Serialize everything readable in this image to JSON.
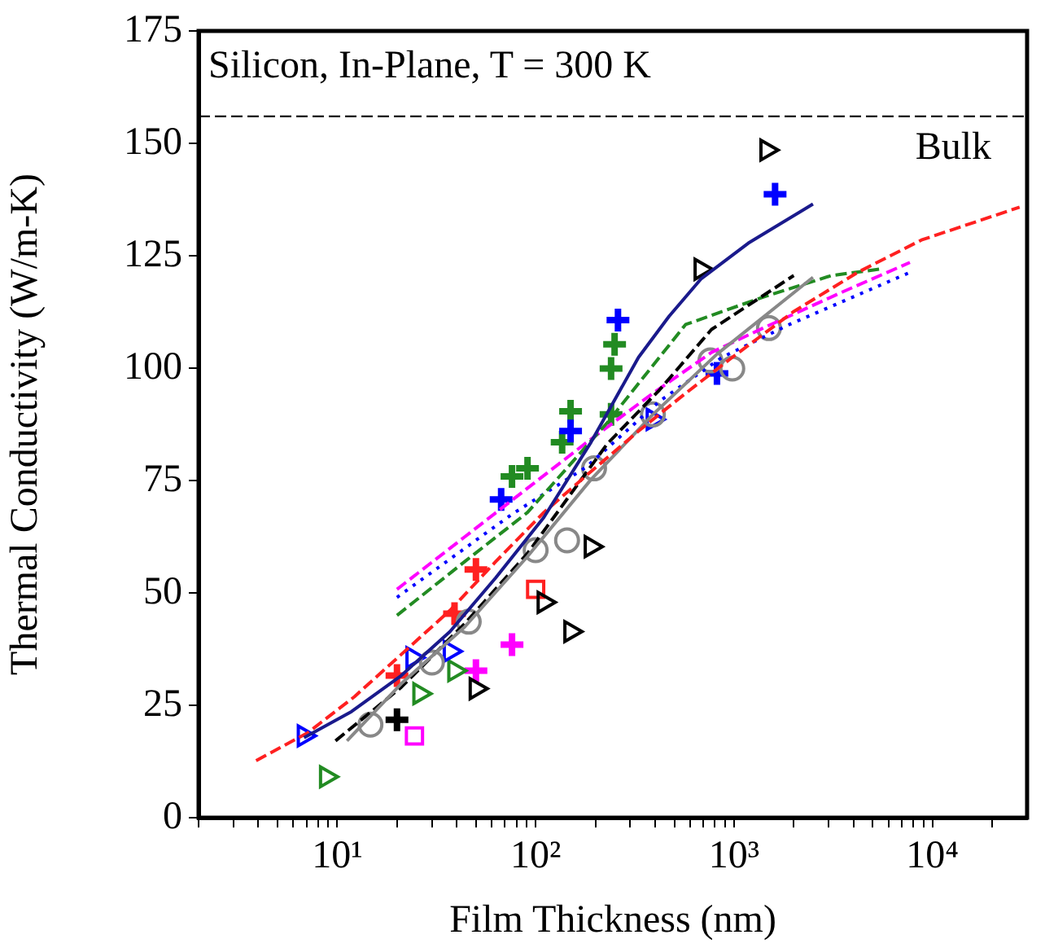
{
  "chart_data": {
    "type": "scatter",
    "xlabel": "Film Thickness (nm)",
    "ylabel": "Thermal Conductivity (W/m-K)",
    "log": "x",
    "grid": false,
    "legend": false,
    "annotations": [
      "Silicon, In-Plane, T = 300 K"
    ],
    "ref_lines": [
      {
        "axis": "y",
        "value": 156,
        "label": "Bulk",
        "color": "#000000",
        "line_style": "dashed"
      }
    ],
    "xlim": [
      2,
      30000
    ],
    "ylim": [
      0,
      175
    ],
    "xticks": [
      {
        "value": 2,
        "label": null
      },
      {
        "value": 3,
        "label": null
      },
      {
        "value": 4,
        "label": null
      },
      {
        "value": 5,
        "label": null
      },
      {
        "value": 6,
        "label": null
      },
      {
        "value": 7,
        "label": null
      },
      {
        "value": 8,
        "label": null
      },
      {
        "value": 9,
        "label": null
      },
      {
        "value": 10,
        "label": "10¹"
      },
      {
        "value": 20,
        "label": null
      },
      {
        "value": 30,
        "label": null
      },
      {
        "value": 40,
        "label": null
      },
      {
        "value": 50,
        "label": null
      },
      {
        "value": 60,
        "label": null
      },
      {
        "value": 70,
        "label": null
      },
      {
        "value": 80,
        "label": null
      },
      {
        "value": 90,
        "label": null
      },
      {
        "value": 100,
        "label": "10²"
      },
      {
        "value": 200,
        "label": null
      },
      {
        "value": 300,
        "label": null
      },
      {
        "value": 400,
        "label": null
      },
      {
        "value": 500,
        "label": null
      },
      {
        "value": 600,
        "label": null
      },
      {
        "value": 700,
        "label": null
      },
      {
        "value": 800,
        "label": null
      },
      {
        "value": 900,
        "label": null
      },
      {
        "value": 1000,
        "label": "10³"
      },
      {
        "value": 2000,
        "label": null
      },
      {
        "value": 3000,
        "label": null
      },
      {
        "value": 4000,
        "label": null
      },
      {
        "value": 5000,
        "label": null
      },
      {
        "value": 6000,
        "label": null
      },
      {
        "value": 7000,
        "label": null
      },
      {
        "value": 8000,
        "label": null
      },
      {
        "value": 9000,
        "label": null
      },
      {
        "value": 10000,
        "label": "10⁴"
      },
      {
        "value": 20000,
        "label": null
      }
    ],
    "yticks": [
      0,
      25,
      50,
      75,
      100,
      125,
      150,
      175
    ],
    "series": [
      {
        "type": "line",
        "color": "#1a1a8c",
        "line_style": "solid",
        "x": [
          6.8,
          11.8,
          21,
          37,
          63,
          110,
          190,
          330,
          470,
          680,
          1180,
          2500
        ],
        "values": [
          17.8,
          23.6,
          31.6,
          41.4,
          53.4,
          66.8,
          83.5,
          102.4,
          111.5,
          119.8,
          127.8,
          136.5
        ]
      },
      {
        "type": "line",
        "color": "#ff2020",
        "line_style": "dashed",
        "x": [
          3.9,
          7.1,
          12.2,
          21,
          37,
          63,
          110,
          190,
          330,
          570,
          980,
          2000,
          4200,
          8800,
          27500
        ],
        "values": [
          12.7,
          18.9,
          26.9,
          36.3,
          46.1,
          57,
          67.9,
          77,
          86,
          94.4,
          102.4,
          112.6,
          121.3,
          128.5,
          135.8
        ]
      },
      {
        "type": "line",
        "color": "#888888",
        "line_style": "solid",
        "x": [
          11.2,
          21,
          44,
          91,
          190,
          390,
          820,
          2500
        ],
        "values": [
          17.1,
          29.8,
          42.5,
          58.1,
          75.2,
          89.7,
          103.1,
          120.2
        ]
      },
      {
        "type": "line",
        "color": "#000000",
        "line_style": "dashed",
        "x": [
          9.8,
          21,
          44,
          91,
          230,
          420,
          770,
          2000
        ],
        "values": [
          17.1,
          29,
          43.2,
          58.8,
          83.2,
          95.1,
          108.6,
          120.6
        ]
      },
      {
        "type": "line",
        "color": "#228b22",
        "line_style": "dashed",
        "x": [
          20,
          44,
          91,
          230,
          570,
          1400,
          3100,
          5400
        ],
        "values": [
          45,
          57,
          67.9,
          87.9,
          109.7,
          115.8,
          120.6,
          122
        ]
      },
      {
        "type": "line",
        "color": "#ff00ff",
        "line_style": "dashed",
        "x": [
          20,
          44,
          91,
          190,
          390,
          770,
          1400,
          3500,
          7700
        ],
        "values": [
          50.8,
          62.5,
          73.3,
          84.2,
          94.4,
          103.5,
          108.9,
          116.9,
          123.5
        ]
      },
      {
        "type": "line",
        "color": "#0000ff",
        "line_style": "dotted",
        "x": [
          20,
          76,
          180,
          420,
          870,
          1900,
          7700
        ],
        "values": [
          49,
          67.5,
          78,
          92.6,
          102.4,
          109.7,
          121.3
        ]
      },
      {
        "type": "scatter",
        "color": "#888888",
        "marker": "circle",
        "x": [
          14.7,
          30,
          46,
          100,
          144,
          197,
          390,
          760,
          980,
          1500
        ],
        "values": [
          20.7,
          34.5,
          43.6,
          59.5,
          61.7,
          77.7,
          89.7,
          101.7,
          99.9,
          108.9
        ]
      },
      {
        "type": "scatter",
        "color": "#0000ff",
        "marker": "triangle",
        "x": [
          6.8,
          24,
          37,
          390
        ],
        "values": [
          18.2,
          35.6,
          37,
          88.6
        ]
      },
      {
        "type": "scatter",
        "color": "#000000",
        "marker": "triangle",
        "x": [
          50,
          110,
          150,
          190,
          680,
          1460
        ],
        "values": [
          28.7,
          47.9,
          41.4,
          60.3,
          122,
          148.5
        ]
      },
      {
        "type": "scatter",
        "color": "#228b22",
        "marker": "triangle",
        "x": [
          8.8,
          26,
          39
        ],
        "values": [
          9.1,
          27.6,
          32.7
        ]
      },
      {
        "type": "scatter",
        "color": "#000000",
        "marker": "cross",
        "x": [
          20
        ],
        "values": [
          21.8
        ]
      },
      {
        "type": "scatter",
        "color": "#ff00ff",
        "marker": "square",
        "x": [
          24.5
        ],
        "values": [
          18.2
        ]
      },
      {
        "type": "scatter",
        "color": "#ff2020",
        "marker": "square",
        "x": [
          100
        ],
        "values": [
          50.8
        ]
      },
      {
        "type": "scatter",
        "color": "#ff00ff",
        "marker": "cross",
        "x": [
          50,
          76
        ],
        "values": [
          32.7,
          38.5
        ]
      },
      {
        "type": "scatter",
        "color": "#ff2020",
        "marker": "cross",
        "x": [
          20,
          39,
          50
        ],
        "values": [
          31.6,
          45.4,
          55.2
        ]
      },
      {
        "type": "scatter",
        "color": "#0000ff",
        "marker": "cross",
        "x": [
          67,
          150,
          260,
          820,
          1610
        ],
        "values": [
          70.8,
          86,
          110.7,
          98.8,
          138.7
        ]
      },
      {
        "type": "scatter",
        "color": "#228b22",
        "marker": "cross",
        "x": [
          76,
          91,
          136,
          150,
          240,
          240,
          250
        ],
        "values": [
          75.9,
          77.7,
          83.5,
          90.4,
          89.7,
          99.9,
          105.3
        ]
      }
    ]
  }
}
